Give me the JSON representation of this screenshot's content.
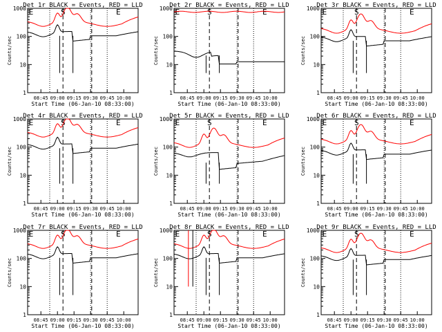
{
  "chart_data": [
    {
      "type": "line",
      "title": "Det 1r BLACK = Events, RED = LLD",
      "ylabel": "Counts/sec",
      "xlabel": "Start Time (06-Jan-10 08:33:00)",
      "profile": "typical",
      "events_base": 150,
      "lld_base": 350,
      "markers": [
        "E",
        "S",
        "E"
      ]
    },
    {
      "type": "line",
      "title": "Det 2r BLACK = Events, RED = LLD",
      "ylabel": "Counts/sec",
      "xlabel": "Start Time (06-Jan-10 08:33:00)",
      "profile": "flat",
      "events_base": 30,
      "lld_base": 750,
      "markers": [
        "E",
        "S",
        "E"
      ]
    },
    {
      "type": "line",
      "title": "Det 3r BLACK = Events, RED = LLD",
      "ylabel": "Counts/sec",
      "xlabel": "Start Time (06-Jan-10 08:33:00)",
      "profile": "typical",
      "events_base": 100,
      "lld_base": 200,
      "markers": [
        "E",
        "S",
        "E"
      ]
    },
    {
      "type": "line",
      "title": "Det 4r BLACK = Events, RED = LLD",
      "ylabel": "Counts/sec",
      "xlabel": "Start Time (06-Jan-10 08:33:00)",
      "profile": "typical",
      "events_base": 130,
      "lld_base": 350,
      "markers": [
        "E",
        "S",
        "E"
      ]
    },
    {
      "type": "line",
      "title": "Det 5r BLACK = Events, RED = LLD",
      "ylabel": "Counts/sec",
      "xlabel": "Start Time (06-Jan-10 08:33:00)",
      "profile": "lowblack",
      "events_base": 40,
      "lld_base": 150,
      "markers": [
        "E",
        "S",
        "E"
      ]
    },
    {
      "type": "line",
      "title": "Det 6r BLACK = Events, RED = LLD",
      "ylabel": "Counts/sec",
      "xlabel": "Start Time (06-Jan-10 08:33:00)",
      "profile": "typical",
      "events_base": 80,
      "lld_base": 200,
      "markers": [
        "E",
        "S",
        "E"
      ]
    },
    {
      "type": "line",
      "title": "Det 7r BLACK = Events, RED = LLD",
      "ylabel": "Counts/sec",
      "xlabel": "Start Time (06-Jan-10 08:33:00)",
      "profile": "typical",
      "events_base": 150,
      "lld_base": 350,
      "markers": [
        "E",
        "S",
        "E"
      ]
    },
    {
      "type": "line",
      "title": "Det 8r BLACK = Events, RED = LLD",
      "ylabel": "Counts/sec",
      "xlabel": "Start Time (06-Jan-10 08:33:00)",
      "profile": "spiky",
      "events_base": 150,
      "lld_base": 350,
      "markers": [
        "E",
        "S",
        "E"
      ]
    },
    {
      "type": "line",
      "title": "Det 9r BLACK = Events, RED = LLD",
      "ylabel": "Counts/sec",
      "xlabel": "Start Time (06-Jan-10 08:33:00)",
      "profile": "typical",
      "events_base": 130,
      "lld_base": 250,
      "markers": [
        "E",
        "S",
        "E"
      ]
    }
  ],
  "axes": {
    "yticks": [
      {
        "v": 1,
        "label": "1"
      },
      {
        "v": 10,
        "label": "10"
      },
      {
        "v": 100,
        "label": "100"
      },
      {
        "v": 1000,
        "label": "1000"
      }
    ],
    "ylim": [
      1,
      1000
    ],
    "xticks": [
      "08:45",
      "09:00",
      "09:15",
      "09:30",
      "09:45",
      "10:00"
    ],
    "log_y": true
  },
  "colors": {
    "events": "#000000",
    "lld": "#ff0000"
  }
}
